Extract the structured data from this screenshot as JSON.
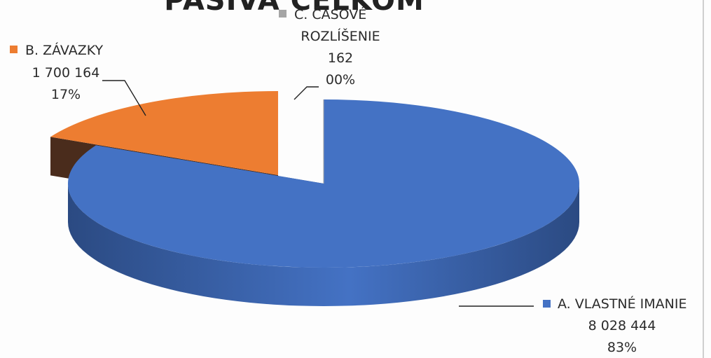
{
  "chart_data": {
    "type": "pie",
    "title": "PASÍVA CELKOM",
    "three_d": true,
    "slices": [
      {
        "name": "A. VLASTNÉ IMANIE",
        "value": 8028444,
        "value_label": "8 028 444",
        "percent_label": "83%",
        "color": "#4472c4",
        "side_color": "#2b4a82"
      },
      {
        "name": "B. ZÁVAZKY",
        "value": 1700164,
        "value_label": "1 700 164",
        "percent_label": "17%",
        "color": "#ed7d31",
        "side_color": "#4a2c1c"
      },
      {
        "name": "C. ČASOVÉ ROZLÍŠENIE",
        "name_lines": [
          "C. ČASOVÉ",
          "ROZLÍŠENIE"
        ],
        "value": 162,
        "value_label": "162",
        "percent_label": "00%",
        "color": "#a5a5a5",
        "side_color": "#6e6e6e"
      }
    ]
  }
}
